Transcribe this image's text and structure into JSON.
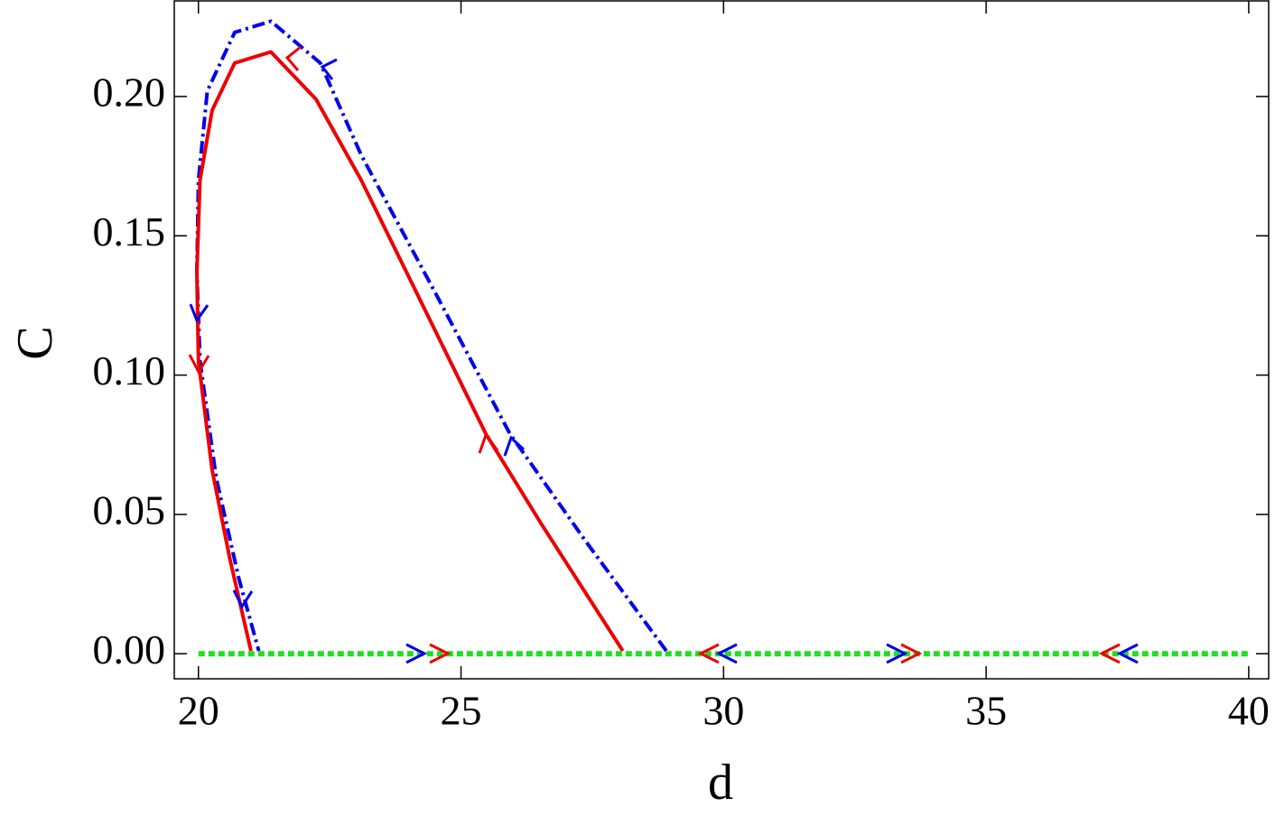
{
  "chart_data": {
    "type": "line",
    "x_label": "d",
    "y_label": "C",
    "xlim": [
      19.54,
      40.38
    ],
    "ylim": [
      -0.009,
      0.2343
    ],
    "xticks": [
      20,
      25,
      30,
      35,
      40
    ],
    "yticks": [
      {
        "value": 0,
        "label": "0.00"
      },
      {
        "value": 0.05,
        "label": "0.05"
      },
      {
        "value": 0.1,
        "label": "0.10"
      },
      {
        "value": 0.15,
        "label": "0.15"
      },
      {
        "value": 0.2,
        "label": "0.20"
      }
    ],
    "series": [
      {
        "color": "#0000ee",
        "style": "dashdot",
        "x": [
          28.91,
          27.39,
          25.93,
          24.47,
          23.1,
          22.32,
          21.38,
          20.69,
          20.17,
          20.0,
          19.97,
          20.03,
          20.34,
          20.77,
          21.15
        ],
        "values": [
          0.001,
          0.04,
          0.079,
          0.131,
          0.179,
          0.212,
          0.227,
          0.223,
          0.202,
          0.17,
          0.137,
          0.105,
          0.063,
          0.027,
          0.001
        ]
      },
      {
        "color": "#ee0000",
        "style": "solid",
        "x": [
          28.08,
          26.53,
          25.47,
          24.3,
          23.1,
          22.24,
          21.38,
          20.69,
          20.26,
          20.03,
          19.97,
          20.0,
          20.26,
          20.6,
          21.0
        ],
        "values": [
          0.001,
          0.0466,
          0.079,
          0.124,
          0.17,
          0.199,
          0.216,
          0.212,
          0.195,
          0.17,
          0.137,
          0.105,
          0.066,
          0.034,
          0.001
        ]
      },
      {
        "color": "#22dd22",
        "style": "dotted",
        "x": [
          20,
          40
        ],
        "values": [
          0,
          0
        ]
      }
    ]
  }
}
